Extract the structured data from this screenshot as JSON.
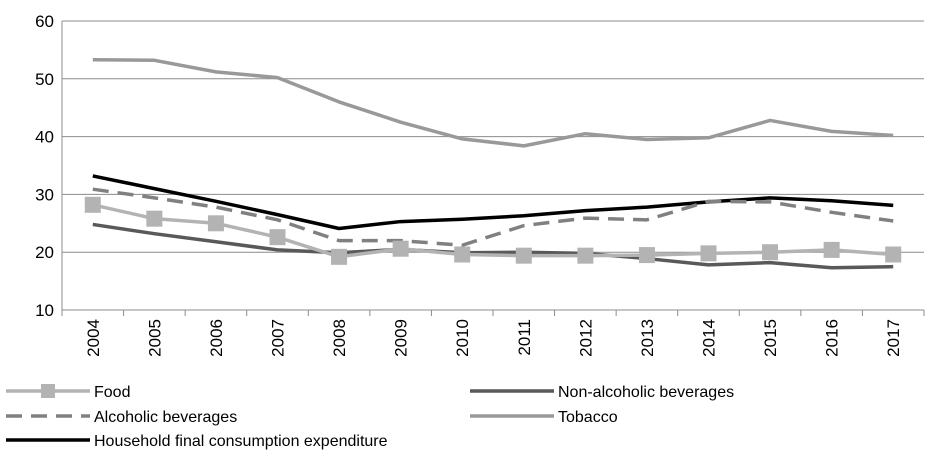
{
  "chart_data": {
    "type": "line",
    "title": "",
    "xlabel": "",
    "ylabel": "",
    "x": [
      "2004",
      "2005",
      "2006",
      "2007",
      "2008",
      "2009",
      "2010",
      "2011",
      "2012",
      "2013",
      "2014",
      "2015",
      "2016",
      "2017"
    ],
    "ylim": [
      10,
      60
    ],
    "yticks": [
      10,
      20,
      30,
      40,
      50,
      60
    ],
    "grid": "horizontal",
    "legend_position": "bottom",
    "series": [
      {
        "name": "Food",
        "color": "#b3b3b3",
        "style": "solid-square-markers",
        "values": [
          28.2,
          25.8,
          25.0,
          22.6,
          19.2,
          20.6,
          19.6,
          19.4,
          19.4,
          19.5,
          19.8,
          20.0,
          20.4,
          19.6
        ]
      },
      {
        "name": "Non-alcoholic beverages",
        "color": "#595959",
        "style": "solid",
        "values": [
          24.8,
          23.2,
          21.8,
          20.4,
          19.9,
          20.5,
          19.9,
          20.0,
          19.8,
          18.9,
          17.8,
          18.2,
          17.3,
          17.5
        ]
      },
      {
        "name": "Alcoholic beverages",
        "color": "#808080",
        "style": "dashed",
        "values": [
          30.9,
          29.4,
          27.8,
          25.6,
          22.0,
          22.0,
          21.2,
          24.6,
          25.9,
          25.6,
          28.8,
          28.7,
          26.9,
          25.4
        ]
      },
      {
        "name": "Tobacco",
        "color": "#999999",
        "style": "solid",
        "values": [
          53.3,
          53.2,
          51.2,
          50.2,
          46.0,
          42.5,
          39.6,
          38.4,
          40.5,
          39.5,
          39.8,
          42.8,
          40.9,
          40.2
        ]
      },
      {
        "name": "Household final consumption expenditure",
        "color": "#000000",
        "style": "solid",
        "values": [
          33.2,
          31.0,
          28.8,
          26.5,
          24.1,
          25.3,
          25.7,
          26.3,
          27.2,
          27.8,
          28.7,
          29.4,
          28.9,
          28.1
        ]
      }
    ]
  }
}
